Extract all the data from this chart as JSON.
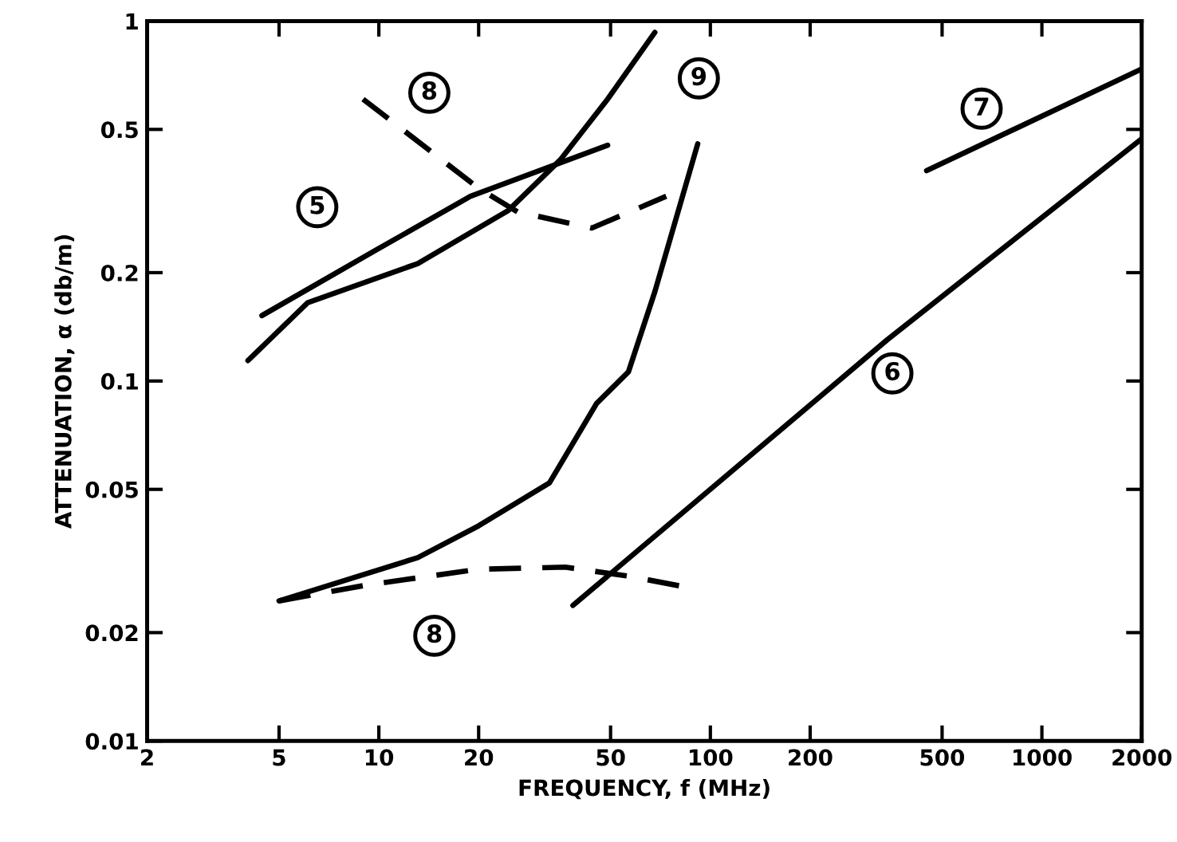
{
  "chart_data": {
    "type": "line",
    "xlabel": "FREQUENCY, f (MHz)",
    "ylabel": "ATTENUATION, α (db/m)",
    "log": "xy",
    "grid": false,
    "marker": "none",
    "xlim": [
      2,
      2000
    ],
    "ylim": [
      0.01,
      1
    ],
    "xticks": [
      2,
      5,
      10,
      20,
      50,
      100,
      200,
      500,
      1000,
      2000
    ],
    "yticks": [
      0.01,
      0.02,
      0.05,
      0.1,
      0.2,
      0.5,
      1
    ],
    "series": [
      {
        "color": "#000000",
        "line_style": "solid",
        "x": [
          4.44,
          9.8,
          18.9,
          49
        ],
        "values": [
          0.152,
          0.231,
          0.326,
          0.452
        ]
      },
      {
        "color": "#000000",
        "line_style": "solid",
        "x": [
          4.03,
          6.1,
          13.1,
          24.6,
          35.3,
          49,
          68
        ],
        "values": [
          0.114,
          0.165,
          0.212,
          0.298,
          0.412,
          0.607,
          0.93
        ]
      },
      {
        "color": "#000000",
        "line_style": "solid",
        "x": [
          5.0,
          13.1,
          20,
          32.7,
          45.4,
          56.6,
          68,
          91.6
        ],
        "values": [
          0.0245,
          0.0323,
          0.0396,
          0.0521,
          0.0867,
          0.106,
          0.177,
          0.456
        ]
      },
      {
        "color": "#000000",
        "line_style": "dashed",
        "x": [
          8.96,
          20,
          26.2,
          43.9,
          73.6
        ],
        "values": [
          0.607,
          0.343,
          0.295,
          0.266,
          0.326
        ]
      },
      {
        "color": "#000000",
        "line_style": "dashed",
        "x": [
          5.0,
          9.16,
          20,
          36.5,
          56.6,
          82
        ],
        "values": [
          0.0245,
          0.0271,
          0.03,
          0.0304,
          0.0287,
          0.0269
        ]
      },
      {
        "color": "#000000",
        "line_style": "solid",
        "x": [
          38.5,
          341,
          2000
        ],
        "values": [
          0.0238,
          0.13,
          0.471
        ]
      },
      {
        "color": "#000000",
        "line_style": "solid",
        "x": [
          449,
          2000
        ],
        "values": [
          0.384,
          0.736
        ]
      }
    ],
    "annotations": [
      {
        "text": "5",
        "x": 6.52,
        "y": 0.304
      },
      {
        "text": "8",
        "x": 14.2,
        "y": 0.632
      },
      {
        "text": "9",
        "x": 92.3,
        "y": 0.693
      },
      {
        "text": "7",
        "x": 658,
        "y": 0.571
      },
      {
        "text": "6",
        "x": 354,
        "y": 0.105
      },
      {
        "text": "8",
        "x": 14.7,
        "y": 0.0196
      }
    ]
  }
}
